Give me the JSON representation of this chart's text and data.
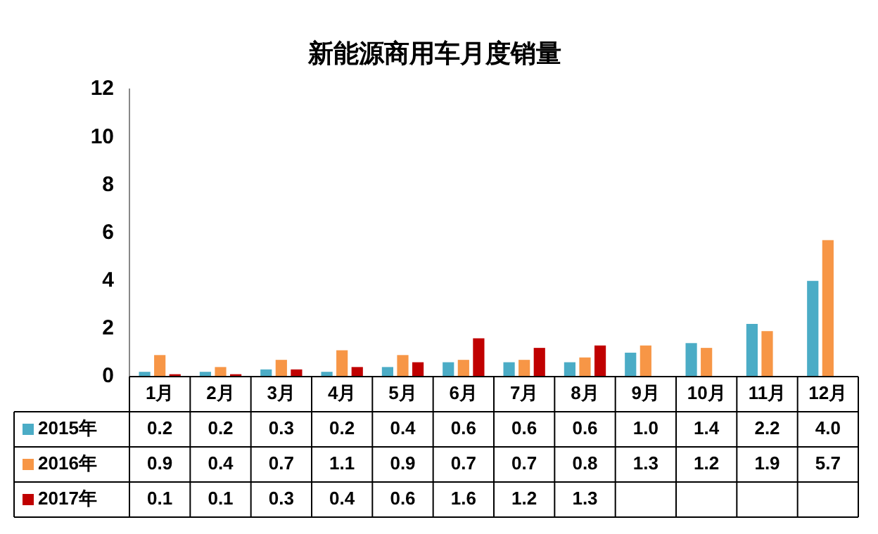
{
  "chart_data": {
    "type": "bar",
    "title": "新能源商用车月度销量",
    "categories": [
      "1月",
      "2月",
      "3月",
      "4月",
      "5月",
      "6月",
      "7月",
      "8月",
      "9月",
      "10月",
      "11月",
      "12月"
    ],
    "series": [
      {
        "name": "2015年",
        "color": "#4bacc6",
        "values": [
          0.2,
          0.2,
          0.3,
          0.2,
          0.4,
          0.6,
          0.6,
          0.6,
          1.0,
          1.4,
          2.2,
          4.0
        ],
        "value_labels": [
          "0.2",
          "0.2",
          "0.3",
          "0.2",
          "0.4",
          "0.6",
          "0.6",
          "0.6",
          "1.0",
          "1.4",
          "2.2",
          "4.0"
        ]
      },
      {
        "name": "2016年",
        "color": "#f79646",
        "values": [
          0.9,
          0.4,
          0.7,
          1.1,
          0.9,
          0.7,
          0.7,
          0.8,
          1.3,
          1.2,
          1.9,
          5.7
        ],
        "value_labels": [
          "0.9",
          "0.4",
          "0.7",
          "1.1",
          "0.9",
          "0.7",
          "0.7",
          "0.8",
          "1.3",
          "1.2",
          "1.9",
          "5.7"
        ]
      },
      {
        "name": "2017年",
        "color": "#c00000",
        "values": [
          0.1,
          0.1,
          0.3,
          0.4,
          0.6,
          1.6,
          1.2,
          1.3,
          null,
          null,
          null,
          null
        ],
        "value_labels": [
          "0.1",
          "0.1",
          "0.3",
          "0.4",
          "0.6",
          "1.6",
          "1.2",
          "1.3",
          null,
          null,
          null,
          null
        ]
      }
    ],
    "ylim": [
      0,
      12
    ],
    "yticks": [
      0,
      2,
      4,
      6,
      8,
      10,
      12
    ],
    "grid": false,
    "legend": "bottom"
  }
}
